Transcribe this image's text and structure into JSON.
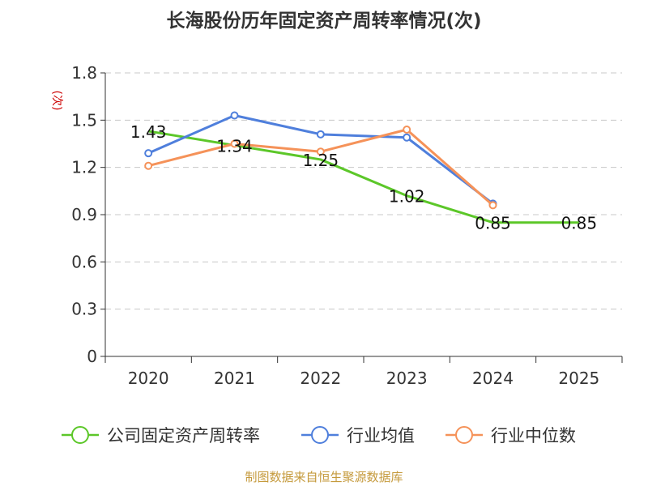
{
  "chart_data": {
    "type": "line",
    "title": "长海股份历年固定资产周转率情况(次)",
    "ylabel": "(次)",
    "xlabel": "",
    "categories": [
      "2020",
      "2021",
      "2022",
      "2023",
      "2024",
      "2025"
    ],
    "ylim": [
      0,
      1.8
    ],
    "yticks": [
      "0",
      "0.3",
      "0.6",
      "0.9",
      "1.2",
      "1.5",
      "1.8"
    ],
    "grid": true,
    "legend_position": "bottom",
    "series": [
      {
        "name": "公司固定资产周转率",
        "color": "#5cc729",
        "values": [
          1.43,
          1.34,
          1.25,
          1.02,
          0.85,
          0.85
        ],
        "labels": [
          "1.43",
          "1.34",
          "1.25",
          "1.02",
          "0.85",
          "0.85"
        ]
      },
      {
        "name": "行业均值",
        "color": "#4f7fdc",
        "values": [
          1.29,
          1.53,
          1.41,
          1.39,
          0.97,
          null
        ]
      },
      {
        "name": "行业中位数",
        "color": "#f59259",
        "values": [
          1.21,
          1.35,
          1.3,
          1.44,
          0.96,
          null
        ]
      }
    ]
  },
  "source": "制图数据来自恒生聚源数据库"
}
